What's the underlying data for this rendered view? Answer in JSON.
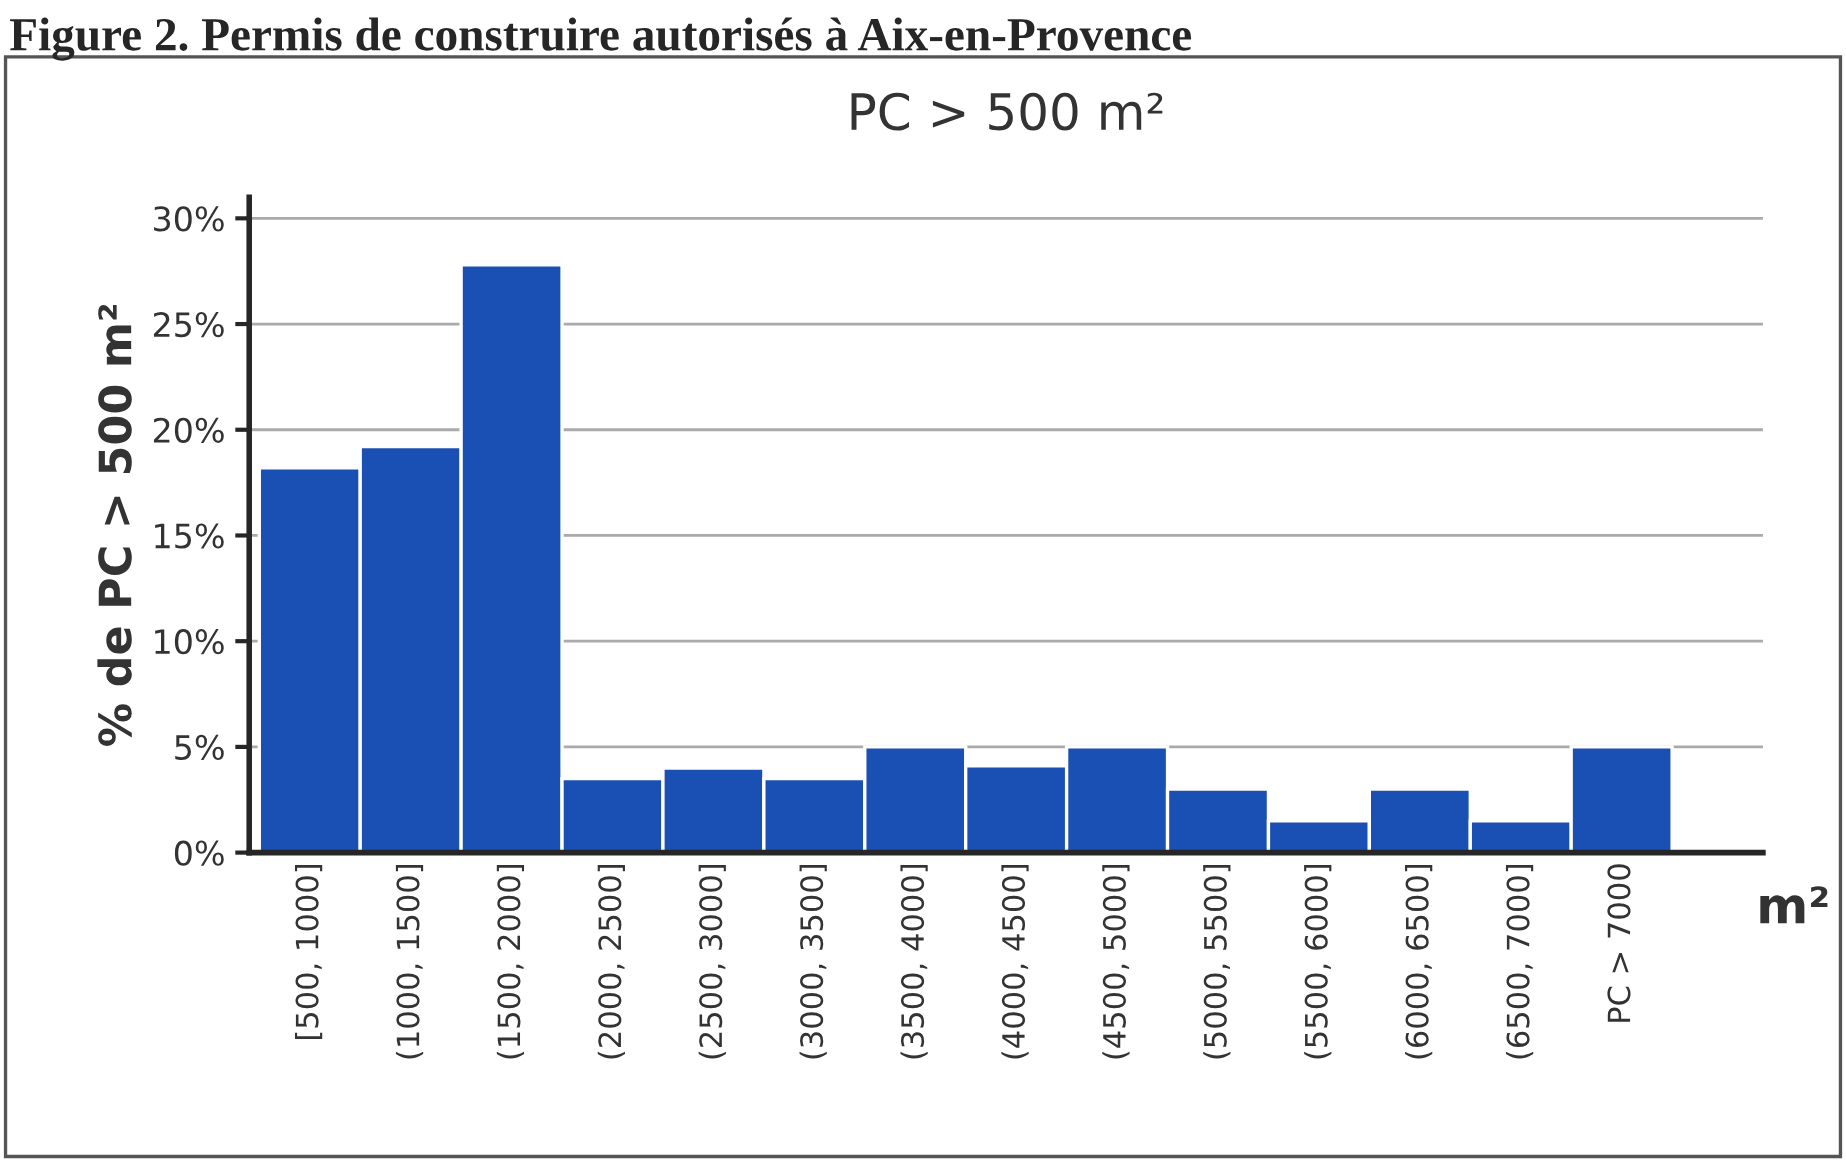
{
  "chart_data": {
    "type": "bar",
    "title": "Figure 2. Permis de construire autorisés à Aix-en-Provence",
    "subtitle": "PC > 500 m²",
    "ylabel": "% de PC > 500 m²",
    "xlabel": "m²",
    "categories": [
      "[500, 1000]",
      "(1000, 1500]",
      "(1500, 2000]",
      "(2000, 2500]",
      "(2500, 3000]",
      "(3000, 3500]",
      "(3500, 4000]",
      "(4000, 4500]",
      "(4500, 5000]",
      "(5000, 5500]",
      "(5500, 6000]",
      "(6000, 6500]",
      "(6500, 7000]",
      "PC > 7000"
    ],
    "values": [
      18.2,
      19.2,
      27.8,
      3.5,
      4.0,
      3.5,
      5.0,
      4.1,
      5.0,
      3.0,
      1.5,
      3.0,
      1.5,
      5.0
    ],
    "color": "#1a4fb4",
    "ylim": [
      0,
      31
    ],
    "yticks": [
      {
        "value": 0,
        "label": "0%"
      },
      {
        "value": 5,
        "label": "5%"
      },
      {
        "value": 10,
        "label": "10%"
      },
      {
        "value": 15,
        "label": "15%"
      },
      {
        "value": 20,
        "label": "20%"
      },
      {
        "value": 25,
        "label": "25%"
      },
      {
        "value": 30,
        "label": "30%"
      }
    ],
    "grid": "y"
  }
}
